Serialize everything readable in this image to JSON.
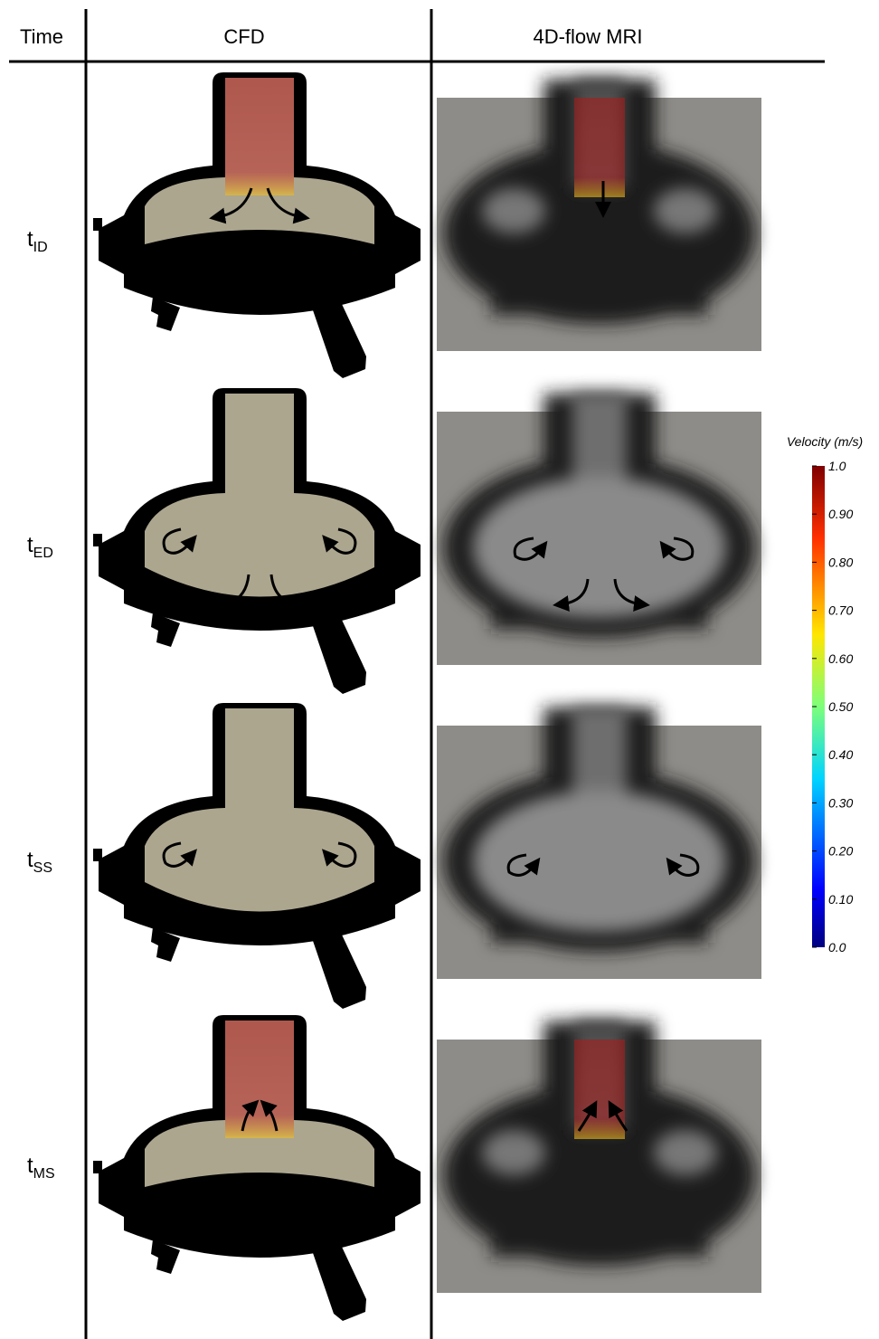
{
  "header": {
    "columns": [
      "Time",
      "CFD",
      "4D-flow MRI"
    ]
  },
  "rows": [
    {
      "time": {
        "base": "t",
        "sub": "ID"
      }
    },
    {
      "time": {
        "base": "t",
        "sub": "ED"
      }
    },
    {
      "time": {
        "base": "t",
        "sub": "SS"
      }
    },
    {
      "time": {
        "base": "t",
        "sub": "MS"
      }
    }
  ],
  "colorbar": {
    "title": "Velocity (m/s)",
    "range": [
      0,
      1
    ],
    "ticks": [
      {
        "value": 0,
        "label": "0.0"
      },
      {
        "value": 0.1,
        "label": "0.10"
      },
      {
        "value": 0.2,
        "label": "0.20"
      },
      {
        "value": 0.3,
        "label": "0.30"
      },
      {
        "value": 0.4,
        "label": "0.40"
      },
      {
        "value": 0.5,
        "label": "0.50"
      },
      {
        "value": 0.6,
        "label": "0.60"
      },
      {
        "value": 0.7,
        "label": "0.70"
      },
      {
        "value": 0.8,
        "label": "0.80"
      },
      {
        "value": 0.9,
        "label": "0.90"
      },
      {
        "value": 1,
        "label": "1.0"
      }
    ]
  }
}
